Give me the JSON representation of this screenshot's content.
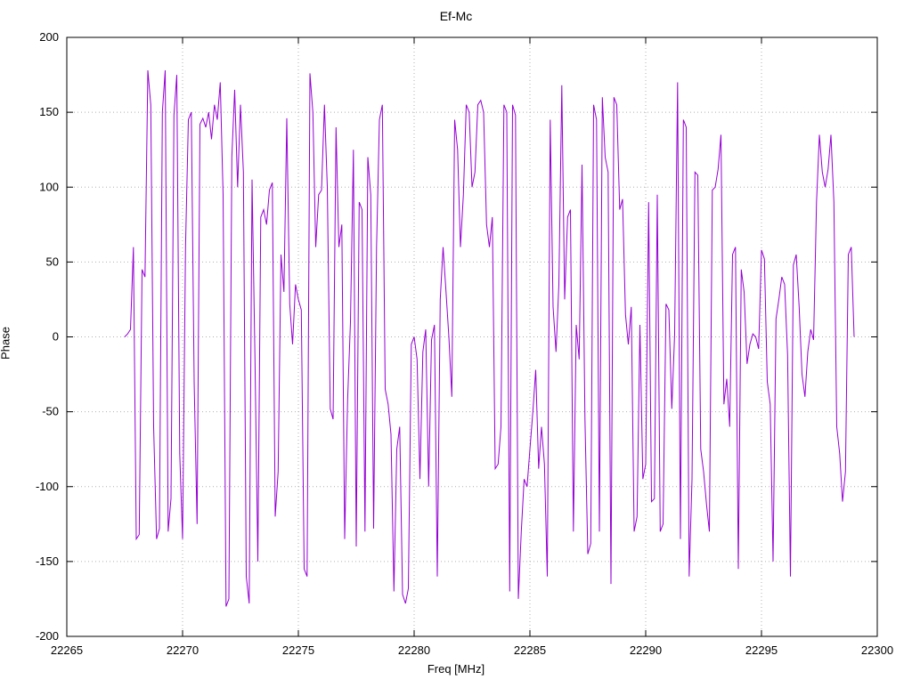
{
  "chart_data": {
    "type": "line",
    "title": "Ef-Mc",
    "xlabel": "Freq [MHz]",
    "ylabel": "Phase",
    "xlim": [
      22265,
      22300
    ],
    "ylim": [
      -200,
      200
    ],
    "x_ticks": [
      22265,
      22270,
      22275,
      22280,
      22285,
      22290,
      22295,
      22300
    ],
    "y_ticks": [
      -200,
      -150,
      -100,
      -50,
      0,
      50,
      100,
      150,
      200
    ],
    "grid": "dotted",
    "legend": "none",
    "line_color": "#9400d3",
    "grid_color": "#b0b0b0",
    "border_color": "#000000",
    "series": [
      {
        "name": "Ef-Mc",
        "x_start": 22267.5,
        "x_step": 0.125,
        "values": [
          0,
          2,
          5,
          60,
          -135,
          -132,
          45,
          40,
          178,
          155,
          -60,
          -135,
          -128,
          150,
          178,
          -130,
          -108,
          148,
          175,
          -78,
          -135,
          60,
          145,
          150,
          -30,
          -125,
          142,
          146,
          140,
          150,
          132,
          155,
          145,
          170,
          95,
          -180,
          -175,
          120,
          165,
          100,
          155,
          110,
          -160,
          -178,
          105,
          -15,
          -150,
          80,
          85,
          75,
          98,
          103,
          -120,
          -90,
          55,
          30,
          146,
          22,
          -5,
          35,
          25,
          18,
          -155,
          -160,
          176,
          150,
          60,
          95,
          98,
          155,
          100,
          -48,
          -55,
          140,
          60,
          75,
          -135,
          -42,
          10,
          125,
          -140,
          90,
          85,
          -130,
          120,
          95,
          -128,
          60,
          145,
          155,
          -35,
          -45,
          -65,
          -170,
          -75,
          -60,
          -172,
          -178,
          -168,
          -5,
          0,
          -15,
          -95,
          -10,
          5,
          -100,
          -2,
          8,
          -160,
          25,
          60,
          30,
          0,
          -40,
          145,
          125,
          60,
          95,
          155,
          150,
          100,
          110,
          155,
          158,
          150,
          75,
          60,
          80,
          -88,
          -85,
          -60,
          155,
          150,
          -170,
          155,
          148,
          -175,
          -130,
          -95,
          -100,
          -75,
          -50,
          -22,
          -88,
          -60,
          -85,
          -160,
          145,
          20,
          -10,
          35,
          168,
          25,
          80,
          85,
          -130,
          8,
          -15,
          115,
          -55,
          -145,
          -138,
          155,
          145,
          -130,
          160,
          120,
          110,
          -165,
          160,
          155,
          85,
          92,
          15,
          -5,
          20,
          -130,
          -120,
          8,
          -95,
          -85,
          90,
          -110,
          -108,
          95,
          -130,
          -125,
          22,
          18,
          -48,
          2,
          170,
          -135,
          145,
          140,
          -160,
          -95,
          110,
          108,
          -75,
          -90,
          -112,
          -130,
          98,
          100,
          112,
          135,
          -45,
          -28,
          -60,
          55,
          60,
          -155,
          45,
          30,
          -18,
          -5,
          2,
          0,
          -8,
          58,
          52,
          -30,
          -45,
          -150,
          12,
          25,
          40,
          35,
          -12,
          -160,
          48,
          55,
          20,
          -25,
          -40,
          -10,
          5,
          -2,
          90,
          135,
          110,
          100,
          112,
          135,
          90,
          -60,
          -78,
          -110,
          -90,
          55,
          60,
          0
        ]
      }
    ]
  }
}
